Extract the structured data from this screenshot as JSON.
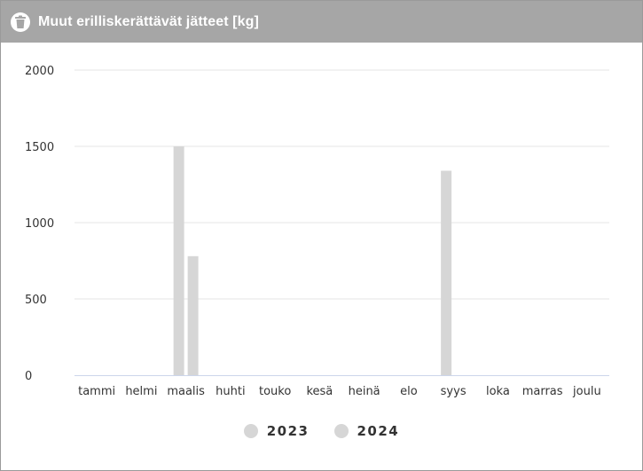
{
  "header": {
    "title": "Muut erilliskerättävät jätteet [kg]",
    "icon": "trash-bin-icon"
  },
  "colors": {
    "header_bg": "#a6a6a6",
    "bar": "#d6d6d6",
    "grid": "#e6e6e6",
    "axis": "#ccd6eb"
  },
  "chart_data": {
    "type": "bar",
    "title": "Muut erilliskerättävät jätteet [kg]",
    "xlabel": "",
    "ylabel": "",
    "categories": [
      "tammi",
      "helmi",
      "maalis",
      "huhti",
      "touko",
      "kesä",
      "heinä",
      "elo",
      "syys",
      "loka",
      "marras",
      "joulu"
    ],
    "series": [
      {
        "name": "2023",
        "color": "#d6d6d6",
        "values": [
          0,
          0,
          1500,
          0,
          0,
          0,
          0,
          0,
          1340,
          0,
          0,
          0
        ]
      },
      {
        "name": "2024",
        "color": "#d6d6d6",
        "values": [
          0,
          0,
          780,
          0,
          0,
          0,
          0,
          0,
          0,
          0,
          0,
          0
        ]
      }
    ],
    "ylim": [
      0,
      2000
    ],
    "yticks": [
      0,
      500,
      1000,
      1500,
      2000
    ],
    "grid": true,
    "legend": "bottom-center"
  }
}
